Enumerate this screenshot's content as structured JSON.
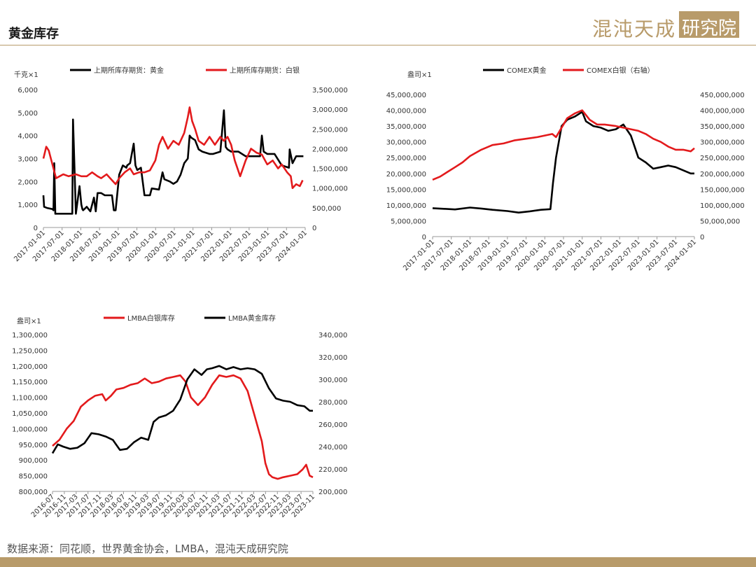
{
  "header": {
    "title": "黄金库存"
  },
  "logo": {
    "text_left": "混沌天成",
    "text_box": "研究院"
  },
  "footer": {
    "source": "数据来源：同花顺，世界黄金协会，LMBA，混沌天成研究院"
  },
  "colors": {
    "gold_series": "#000000",
    "silver_series": "#e31a1c",
    "brand": "#b89b6a"
  },
  "chart_data": [
    {
      "type": "line",
      "unit_label": "千克×1",
      "legend": [
        "上期所库存期货：黄金",
        "上期所库存期货：白银"
      ],
      "legend_position": "top",
      "x_ticks": [
        "2017-01-01",
        "2017-07-01",
        "2018-01-01",
        "2018-07-01",
        "2019-01-01",
        "2019-07-01",
        "2020-01-01",
        "2020-07-01",
        "2021-01-01",
        "2021-07-01",
        "2022-01-01",
        "2022-07-01",
        "2023-01-01",
        "2023-07-01",
        "2024-01-01"
      ],
      "xlim": [
        2017.0,
        2024.25
      ],
      "ylim_left": [
        0,
        6000
      ],
      "left_ticks": [
        "0",
        "1,000",
        "2,000",
        "3,000",
        "4,000",
        "5,000",
        "6,000"
      ],
      "ylim_right": [
        0,
        3500000
      ],
      "right_ticks": [
        "0",
        "500,000",
        "1,000,000",
        "1,500,000",
        "2,000,000",
        "2,500,000",
        "3,000,000",
        "3,500,000"
      ],
      "series": [
        {
          "name": "上期所库存期货：黄金",
          "axis": "left",
          "color": "#000000",
          "x": [
            2017.0,
            2017.02,
            2017.1,
            2017.25,
            2017.28,
            2017.3,
            2017.33,
            2017.5,
            2017.8,
            2017.82,
            2017.9,
            2018.0,
            2018.05,
            2018.08,
            2018.1,
            2018.2,
            2018.3,
            2018.4,
            2018.45,
            2018.5,
            2018.55,
            2018.6,
            2018.7,
            2018.9,
            2018.95,
            2019.0,
            2019.1,
            2019.2,
            2019.3,
            2019.32,
            2019.4,
            2019.5,
            2019.55,
            2019.6,
            2019.7,
            2019.8,
            2019.9,
            2019.95,
            2020.0,
            2020.2,
            2020.3,
            2020.35,
            2020.5,
            2020.6,
            2020.7,
            2020.8,
            2020.9,
            2021.0,
            2021.05,
            2021.1,
            2021.2,
            2021.3,
            2021.4,
            2021.6,
            2021.7,
            2021.9,
            2022.0,
            2022.05,
            2022.1,
            2022.2,
            2022.4,
            2022.6,
            2022.7,
            2022.8,
            2023.0,
            2023.05,
            2023.1,
            2023.2,
            2023.4,
            2023.6,
            2023.8,
            2023.82,
            2023.9,
            2024.0,
            2024.1,
            2024.2
          ],
          "y": [
            1400,
            900,
            850,
            800,
            750,
            2800,
            600,
            600,
            600,
            4700,
            600,
            1800,
            1000,
            800,
            750,
            900,
            700,
            1300,
            700,
            1500,
            1500,
            1500,
            1400,
            1400,
            750,
            750,
            2300,
            2700,
            2600,
            2700,
            2800,
            3650,
            2700,
            2500,
            2600,
            1400,
            1400,
            1400,
            1700,
            1650,
            2400,
            2100,
            2000,
            1900,
            2000,
            2300,
            2800,
            3000,
            4000,
            3900,
            3800,
            3400,
            3300,
            3200,
            3200,
            3300,
            5100,
            3500,
            3400,
            3300,
            3300,
            3100,
            3100,
            3100,
            3100,
            4000,
            3300,
            3200,
            3200,
            2700,
            2600,
            3400,
            2800,
            3100,
            3100,
            3100
          ]
        },
        {
          "name": "上期所库存期货：白银",
          "axis": "right",
          "color": "#e31a1c",
          "x": [
            2017.0,
            2017.08,
            2017.15,
            2017.25,
            2017.35,
            2017.45,
            2017.55,
            2017.7,
            2017.9,
            2018.05,
            2018.2,
            2018.35,
            2018.5,
            2018.6,
            2018.75,
            2018.9,
            2019.0,
            2019.1,
            2019.25,
            2019.4,
            2019.5,
            2019.65,
            2019.8,
            2019.95,
            2020.1,
            2020.2,
            2020.3,
            2020.45,
            2020.6,
            2020.75,
            2020.9,
            2021.0,
            2021.05,
            2021.12,
            2021.2,
            2021.3,
            2021.45,
            2021.6,
            2021.75,
            2021.9,
            2022.0,
            2022.1,
            2022.2,
            2022.3,
            2022.45,
            2022.6,
            2022.75,
            2022.9,
            2023.05,
            2023.2,
            2023.35,
            2023.5,
            2023.6,
            2023.75,
            2023.85,
            2023.9,
            2024.0,
            2024.1,
            2024.18
          ],
          "y": [
            1750000,
            2050000,
            1950000,
            1600000,
            1250000,
            1300000,
            1350000,
            1300000,
            1350000,
            1300000,
            1300000,
            1400000,
            1300000,
            1250000,
            1350000,
            1200000,
            1100000,
            1250000,
            1400000,
            1500000,
            1350000,
            1400000,
            1400000,
            1450000,
            1700000,
            2100000,
            2300000,
            2000000,
            2200000,
            2100000,
            2400000,
            2800000,
            3050000,
            2700000,
            2500000,
            2200000,
            2100000,
            2300000,
            2100000,
            2300000,
            2200000,
            2300000,
            2100000,
            1700000,
            1300000,
            1700000,
            2000000,
            1900000,
            1850000,
            1600000,
            1700000,
            1500000,
            1600000,
            1400000,
            1300000,
            1000000,
            1100000,
            1050000,
            1200000
          ]
        }
      ]
    },
    {
      "type": "line",
      "unit_label": "盎司×1",
      "legend": [
        "COMEX黄金",
        "COMEX白银（右轴）"
      ],
      "legend_position": "top",
      "x_ticks": [
        "2017-01-01",
        "2017-07-01",
        "2018-01-01",
        "2018-07-01",
        "2019-01-01",
        "2019-07-01",
        "2020-01-01",
        "2020-07-01",
        "2021-01-01",
        "2021-07-01",
        "2022-01-01",
        "2022-07-01",
        "2023-01-01",
        "2023-07-01",
        "2024-01-01"
      ],
      "xlim": [
        2017.0,
        2024.0
      ],
      "ylim_left": [
        0,
        45000000
      ],
      "left_ticks": [
        "0",
        "5,000,000",
        "10,000,000",
        "15,000,000",
        "20,000,000",
        "25,000,000",
        "30,000,000",
        "35,000,000",
        "40,000,000",
        "45,000,000"
      ],
      "ylim_right": [
        0,
        450000000
      ],
      "right_ticks": [
        "0",
        "50,000,000",
        "100,000,000",
        "150,000,000",
        "200,000,000",
        "250,000,000",
        "300,000,000",
        "350,000,000",
        "400,000,000",
        "450,000,000"
      ],
      "series": [
        {
          "name": "COMEX黄金",
          "axis": "left",
          "color": "#000000",
          "x": [
            2017.0,
            2017.3,
            2017.6,
            2018.0,
            2018.3,
            2018.6,
            2019.0,
            2019.3,
            2019.6,
            2019.9,
            2020.15,
            2020.22,
            2020.3,
            2020.45,
            2020.6,
            2020.8,
            2021.0,
            2021.1,
            2021.3,
            2021.5,
            2021.7,
            2021.9,
            2022.1,
            2022.3,
            2022.5,
            2022.7,
            2022.9,
            2023.1,
            2023.3,
            2023.5,
            2023.7,
            2023.9,
            2024.0
          ],
          "y": [
            9000000,
            8800000,
            8600000,
            9200000,
            8900000,
            8500000,
            8100000,
            7600000,
            8000000,
            8500000,
            8700000,
            17000000,
            25000000,
            35000000,
            37000000,
            38000000,
            39500000,
            36500000,
            35000000,
            34500000,
            33500000,
            34000000,
            35500000,
            32000000,
            25000000,
            23500000,
            21500000,
            22000000,
            22500000,
            22000000,
            21000000,
            20000000,
            20000000
          ]
        },
        {
          "name": "COMEX白银（右轴）",
          "axis": "right",
          "color": "#e31a1c",
          "x": [
            2017.0,
            2017.2,
            2017.4,
            2017.6,
            2017.8,
            2018.0,
            2018.3,
            2018.6,
            2018.9,
            2019.2,
            2019.5,
            2019.8,
            2020.0,
            2020.2,
            2020.3,
            2020.45,
            2020.6,
            2020.8,
            2021.0,
            2021.2,
            2021.4,
            2021.6,
            2021.9,
            2022.1,
            2022.3,
            2022.5,
            2022.7,
            2022.9,
            2023.1,
            2023.3,
            2023.5,
            2023.7,
            2023.9,
            2024.0
          ],
          "y": [
            180000000,
            190000000,
            205000000,
            220000000,
            235000000,
            255000000,
            275000000,
            290000000,
            295000000,
            305000000,
            310000000,
            315000000,
            320000000,
            325000000,
            315000000,
            345000000,
            375000000,
            390000000,
            400000000,
            370000000,
            355000000,
            355000000,
            350000000,
            345000000,
            340000000,
            335000000,
            325000000,
            310000000,
            300000000,
            285000000,
            275000000,
            275000000,
            270000000,
            280000000
          ]
        }
      ]
    },
    {
      "type": "line",
      "unit_label": "盎司×1",
      "legend": [
        "LMBA白银库存",
        "LMBA黄金库存"
      ],
      "legend_position": "top",
      "x_ticks": [
        "2016-07",
        "2016-11",
        "2017-03",
        "2017-07",
        "2017-11",
        "2018-03",
        "2018-07",
        "2018-11",
        "2019-03",
        "2019-07",
        "2019-11",
        "2020-03",
        "2020-07",
        "2020-11",
        "2021-03",
        "2021-07",
        "2021-11",
        "2022-03",
        "2022-07",
        "2022-11",
        "2023-03",
        "2023-07",
        "2023-11"
      ],
      "xlim": [
        2016.5,
        2023.84
      ],
      "ylim_left": [
        800000,
        1300000
      ],
      "left_ticks": [
        "800,000",
        "850,000",
        "900,000",
        "950,000",
        "1,000,000",
        "1,050,000",
        "1,100,000",
        "1,150,000",
        "1,200,000",
        "1,250,000",
        "1,300,000"
      ],
      "ylim_right": [
        200000,
        340000
      ],
      "right_ticks": [
        "200,000",
        "220,000",
        "240,000",
        "260,000",
        "280,000",
        "300,000",
        "320,000",
        "340,000"
      ],
      "series": [
        {
          "name": "LMBA白银库存",
          "axis": "left",
          "color": "#e31a1c",
          "x": [
            2016.5,
            2016.7,
            2016.9,
            2017.1,
            2017.3,
            2017.5,
            2017.7,
            2017.9,
            2018.0,
            2018.15,
            2018.3,
            2018.5,
            2018.7,
            2018.9,
            2019.1,
            2019.3,
            2019.5,
            2019.7,
            2019.9,
            2020.1,
            2020.25,
            2020.4,
            2020.6,
            2020.8,
            2021.0,
            2021.2,
            2021.4,
            2021.6,
            2021.8,
            2022.0,
            2022.2,
            2022.4,
            2022.5,
            2022.6,
            2022.7,
            2022.85,
            2023.0,
            2023.2,
            2023.4,
            2023.55,
            2023.65,
            2023.75,
            2023.84
          ],
          "y": [
            945000,
            965000,
            1000000,
            1025000,
            1070000,
            1090000,
            1105000,
            1110000,
            1090000,
            1105000,
            1125000,
            1130000,
            1140000,
            1145000,
            1160000,
            1145000,
            1150000,
            1160000,
            1165000,
            1170000,
            1150000,
            1100000,
            1075000,
            1100000,
            1140000,
            1170000,
            1165000,
            1170000,
            1160000,
            1120000,
            1040000,
            960000,
            890000,
            855000,
            845000,
            840000,
            845000,
            850000,
            855000,
            870000,
            885000,
            850000,
            845000
          ]
        },
        {
          "name": "LMBA黄金库存",
          "axis": "right",
          "color": "#000000",
          "x": [
            2016.5,
            2016.65,
            2016.8,
            2017.0,
            2017.2,
            2017.4,
            2017.6,
            2017.8,
            2018.0,
            2018.2,
            2018.4,
            2018.6,
            2018.8,
            2019.0,
            2019.2,
            2019.35,
            2019.5,
            2019.7,
            2019.9,
            2020.1,
            2020.3,
            2020.5,
            2020.7,
            2020.85,
            2021.0,
            2021.2,
            2021.4,
            2021.6,
            2021.8,
            2022.0,
            2022.2,
            2022.4,
            2022.6,
            2022.8,
            2023.0,
            2023.2,
            2023.4,
            2023.6,
            2023.75,
            2023.84
          ],
          "y": [
            234000,
            242000,
            240000,
            238000,
            239000,
            243000,
            252000,
            251000,
            249000,
            246000,
            237000,
            238000,
            244000,
            248000,
            246000,
            262000,
            266000,
            268000,
            272000,
            282000,
            300000,
            309000,
            304000,
            309000,
            310000,
            312000,
            309000,
            311000,
            309000,
            310000,
            309000,
            305000,
            292000,
            283000,
            281000,
            280000,
            277000,
            276000,
            272000,
            272000
          ]
        }
      ]
    }
  ]
}
